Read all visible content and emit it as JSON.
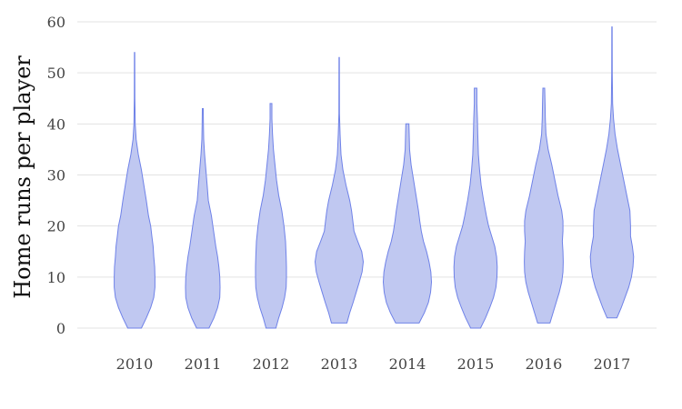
{
  "chart_data": {
    "type": "violin",
    "xlabel": "",
    "ylabel": "Home runs per player",
    "ylim": [
      0,
      60
    ],
    "yticks": [
      0,
      10,
      20,
      30,
      40,
      50,
      60
    ],
    "grid": true,
    "fill_color": "#c0c8f1",
    "stroke_color": "#6f82e8",
    "categories": [
      "2010",
      "2011",
      "2012",
      "2013",
      "2014",
      "2015",
      "2016",
      "2017"
    ],
    "distributions": [
      {
        "category": "2010",
        "min": 0,
        "max": 54,
        "profile": [
          [
            0,
            0.22
          ],
          [
            2,
            0.38
          ],
          [
            4,
            0.52
          ],
          [
            6,
            0.62
          ],
          [
            8,
            0.66
          ],
          [
            10,
            0.66
          ],
          [
            12,
            0.65
          ],
          [
            14,
            0.62
          ],
          [
            16,
            0.6
          ],
          [
            18,
            0.56
          ],
          [
            20,
            0.52
          ],
          [
            22,
            0.45
          ],
          [
            25,
            0.38
          ],
          [
            28,
            0.3
          ],
          [
            31,
            0.22
          ],
          [
            34,
            0.12
          ],
          [
            37,
            0.05
          ],
          [
            40,
            0.02
          ],
          [
            45,
            0.01
          ],
          [
            54,
            0.005
          ]
        ]
      },
      {
        "category": "2011",
        "min": 0,
        "max": 43,
        "profile": [
          [
            0,
            0.2
          ],
          [
            2,
            0.36
          ],
          [
            4,
            0.48
          ],
          [
            6,
            0.55
          ],
          [
            8,
            0.56
          ],
          [
            10,
            0.55
          ],
          [
            12,
            0.52
          ],
          [
            14,
            0.48
          ],
          [
            16,
            0.42
          ],
          [
            19,
            0.35
          ],
          [
            22,
            0.28
          ],
          [
            25,
            0.18
          ],
          [
            28,
            0.14
          ],
          [
            31,
            0.1
          ],
          [
            34,
            0.06
          ],
          [
            37,
            0.03
          ],
          [
            40,
            0.02
          ],
          [
            43,
            0.015
          ]
        ]
      },
      {
        "category": "2012",
        "min": 0,
        "max": 44,
        "profile": [
          [
            0,
            0.16
          ],
          [
            2,
            0.25
          ],
          [
            4,
            0.36
          ],
          [
            6,
            0.44
          ],
          [
            8,
            0.49
          ],
          [
            10,
            0.5
          ],
          [
            12,
            0.5
          ],
          [
            14,
            0.49
          ],
          [
            17,
            0.47
          ],
          [
            20,
            0.42
          ],
          [
            23,
            0.35
          ],
          [
            26,
            0.25
          ],
          [
            29,
            0.18
          ],
          [
            32,
            0.13
          ],
          [
            35,
            0.08
          ],
          [
            38,
            0.05
          ],
          [
            41,
            0.03
          ],
          [
            44,
            0.03
          ]
        ]
      },
      {
        "category": "2013",
        "min": 1,
        "max": 53,
        "profile": [
          [
            1,
            0.25
          ],
          [
            3,
            0.34
          ],
          [
            5,
            0.45
          ],
          [
            7,
            0.55
          ],
          [
            9,
            0.65
          ],
          [
            11,
            0.74
          ],
          [
            13,
            0.78
          ],
          [
            15,
            0.73
          ],
          [
            17,
            0.6
          ],
          [
            19,
            0.48
          ],
          [
            21,
            0.44
          ],
          [
            23,
            0.4
          ],
          [
            25,
            0.34
          ],
          [
            28,
            0.22
          ],
          [
            31,
            0.12
          ],
          [
            34,
            0.06
          ],
          [
            38,
            0.03
          ],
          [
            42,
            0.01
          ],
          [
            53,
            0.005
          ]
        ]
      },
      {
        "category": "2014",
        "min": 1,
        "max": 40,
        "profile": [
          [
            1,
            0.38
          ],
          [
            3,
            0.55
          ],
          [
            5,
            0.68
          ],
          [
            7,
            0.75
          ],
          [
            9,
            0.78
          ],
          [
            11,
            0.76
          ],
          [
            13,
            0.7
          ],
          [
            15,
            0.62
          ],
          [
            17,
            0.52
          ],
          [
            19,
            0.45
          ],
          [
            21,
            0.4
          ],
          [
            23,
            0.36
          ],
          [
            26,
            0.28
          ],
          [
            29,
            0.2
          ],
          [
            32,
            0.12
          ],
          [
            35,
            0.07
          ],
          [
            38,
            0.06
          ],
          [
            40,
            0.05
          ]
        ]
      },
      {
        "category": "2015",
        "min": 0,
        "max": 47,
        "profile": [
          [
            0,
            0.16
          ],
          [
            2,
            0.32
          ],
          [
            4,
            0.46
          ],
          [
            6,
            0.58
          ],
          [
            8,
            0.66
          ],
          [
            10,
            0.69
          ],
          [
            12,
            0.7
          ],
          [
            14,
            0.68
          ],
          [
            16,
            0.62
          ],
          [
            18,
            0.52
          ],
          [
            20,
            0.42
          ],
          [
            22,
            0.35
          ],
          [
            25,
            0.26
          ],
          [
            28,
            0.18
          ],
          [
            31,
            0.13
          ],
          [
            34,
            0.09
          ],
          [
            38,
            0.07
          ],
          [
            41,
            0.06
          ],
          [
            44,
            0.04
          ],
          [
            47,
            0.04
          ]
        ]
      },
      {
        "category": "2016",
        "min": 1,
        "max": 47,
        "profile": [
          [
            1,
            0.2
          ],
          [
            3,
            0.3
          ],
          [
            5,
            0.4
          ],
          [
            7,
            0.5
          ],
          [
            9,
            0.58
          ],
          [
            11,
            0.62
          ],
          [
            13,
            0.63
          ],
          [
            15,
            0.62
          ],
          [
            17,
            0.6
          ],
          [
            19,
            0.62
          ],
          [
            21,
            0.62
          ],
          [
            23,
            0.58
          ],
          [
            26,
            0.46
          ],
          [
            29,
            0.36
          ],
          [
            32,
            0.26
          ],
          [
            35,
            0.14
          ],
          [
            38,
            0.07
          ],
          [
            41,
            0.05
          ],
          [
            44,
            0.04
          ],
          [
            47,
            0.03
          ]
        ]
      },
      {
        "category": "2017",
        "min": 2,
        "max": 59,
        "profile": [
          [
            2,
            0.16
          ],
          [
            4,
            0.3
          ],
          [
            6,
            0.42
          ],
          [
            8,
            0.54
          ],
          [
            10,
            0.63
          ],
          [
            12,
            0.68
          ],
          [
            14,
            0.7
          ],
          [
            16,
            0.66
          ],
          [
            18,
            0.6
          ],
          [
            20,
            0.6
          ],
          [
            23,
            0.58
          ],
          [
            26,
            0.48
          ],
          [
            29,
            0.38
          ],
          [
            32,
            0.28
          ],
          [
            35,
            0.18
          ],
          [
            38,
            0.1
          ],
          [
            41,
            0.05
          ],
          [
            44,
            0.02
          ],
          [
            50,
            0.01
          ],
          [
            59,
            0.005
          ]
        ]
      }
    ]
  }
}
